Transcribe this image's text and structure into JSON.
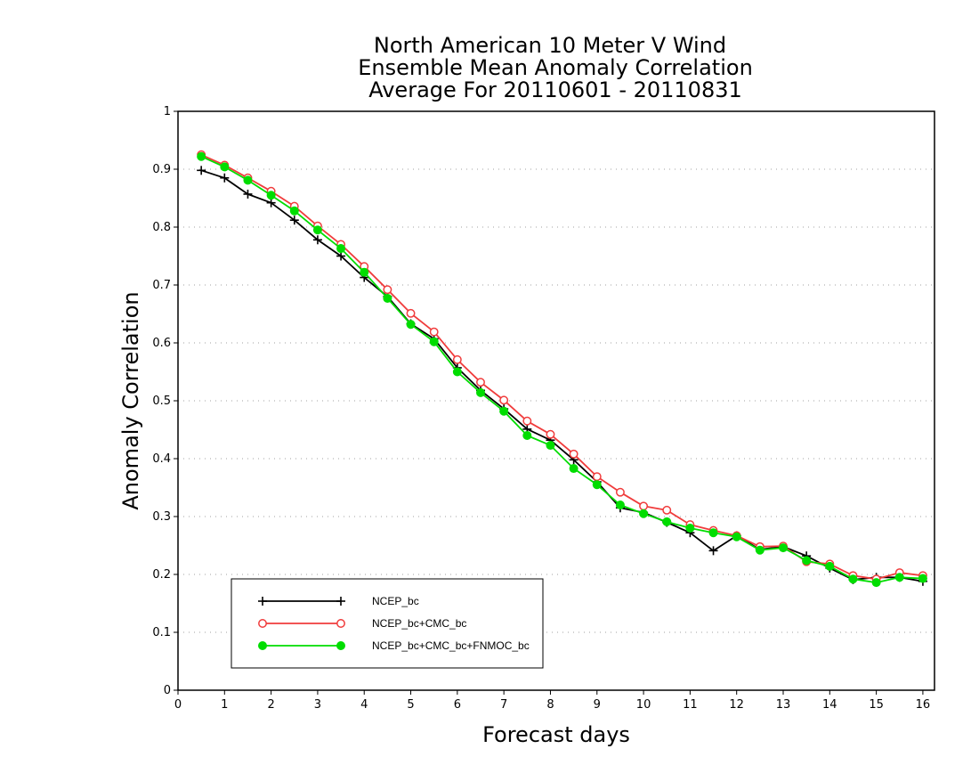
{
  "chart_data": {
    "type": "line",
    "title_lines": [
      "North American 10 Meter V Wind",
      "Ensemble Mean Anomaly Correlation",
      "Average For 20110601 - 20110831"
    ],
    "xlabel": "Forecast days",
    "ylabel": "Anomaly Correlation",
    "xlim": [
      0,
      16.25
    ],
    "ylim": [
      0,
      1
    ],
    "x_ticks": [
      "0",
      "1",
      "2",
      "3",
      "4",
      "5",
      "6",
      "7",
      "8",
      "9",
      "10",
      "11",
      "12",
      "13",
      "14",
      "15",
      "16"
    ],
    "y_ticks": [
      "0",
      "0.1",
      "0.2",
      "0.3",
      "0.4",
      "0.5",
      "0.6",
      "0.7",
      "0.8",
      "0.9",
      "1"
    ],
    "grid": true,
    "legend_position": "bottom-left",
    "x": [
      0.5,
      1,
      1.5,
      2,
      2.5,
      3,
      3.5,
      4,
      4.5,
      5,
      5.5,
      6,
      6.5,
      7,
      7.5,
      8,
      8.5,
      9,
      9.5,
      10,
      10.5,
      11,
      11.5,
      12,
      12.5,
      13,
      13.5,
      14,
      14.5,
      15,
      15.5,
      16
    ],
    "series": [
      {
        "name": "NCEP_bc",
        "color": "#000000",
        "marker": "plus",
        "values": [
          0.898,
          0.885,
          0.857,
          0.842,
          0.812,
          0.778,
          0.75,
          0.713,
          0.68,
          0.633,
          0.607,
          0.557,
          0.518,
          0.486,
          0.451,
          0.432,
          0.398,
          0.36,
          0.315,
          0.307,
          0.29,
          0.272,
          0.241,
          0.267,
          0.243,
          0.248,
          0.232,
          0.211,
          0.191,
          0.195,
          0.195,
          0.188
        ]
      },
      {
        "name": "NCEP_bc+CMC_bc",
        "color": "#f03c3c",
        "marker": "open-circle",
        "values": [
          0.925,
          0.907,
          0.885,
          0.862,
          0.836,
          0.802,
          0.77,
          0.732,
          0.692,
          0.651,
          0.619,
          0.571,
          0.532,
          0.501,
          0.465,
          0.442,
          0.408,
          0.369,
          0.342,
          0.318,
          0.311,
          0.286,
          0.276,
          0.267,
          0.248,
          0.249,
          0.222,
          0.218,
          0.198,
          0.192,
          0.203,
          0.198
        ]
      },
      {
        "name": "NCEP_bc+CMC_bc+FNMOC_bc",
        "color": "#00dd00",
        "marker": "filled-circle",
        "values": [
          0.922,
          0.904,
          0.881,
          0.855,
          0.828,
          0.795,
          0.763,
          0.722,
          0.677,
          0.632,
          0.602,
          0.55,
          0.514,
          0.482,
          0.44,
          0.423,
          0.383,
          0.355,
          0.32,
          0.305,
          0.291,
          0.28,
          0.272,
          0.265,
          0.242,
          0.246,
          0.224,
          0.214,
          0.192,
          0.186,
          0.195,
          0.193
        ]
      }
    ]
  }
}
